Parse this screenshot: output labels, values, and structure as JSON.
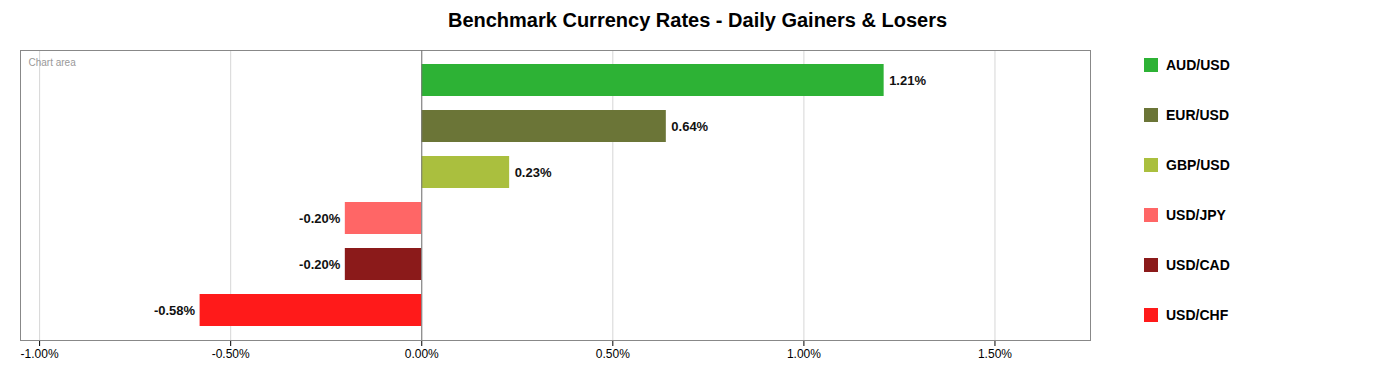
{
  "chart_data": {
    "type": "bar",
    "title": "Benchmark Currency Rates - Daily Gainers & Losers",
    "orientation": "horizontal",
    "categories": [
      "AUD/USD",
      "EUR/USD",
      "GBP/USD",
      "USD/JPY",
      "USD/CAD",
      "USD/CHF"
    ],
    "values": [
      1.21,
      0.64,
      0.23,
      -0.2,
      -0.2,
      -0.58
    ],
    "value_labels": [
      "1.21%",
      "0.64%",
      "0.23%",
      "-0.20%",
      "-0.20%",
      "-0.58%"
    ],
    "data_labels": true,
    "colors": [
      "#2DB235",
      "#6B7537",
      "#AABF3E",
      "#FF6666",
      "#8B1A1A",
      "#FF1A1A"
    ],
    "xlim": [
      -1.05,
      1.75
    ],
    "xticks": [
      {
        "value": -1.0,
        "label": "-1.00%"
      },
      {
        "value": -0.5,
        "label": "-0.50%"
      },
      {
        "value": 0.0,
        "label": "0.00%"
      },
      {
        "value": 0.5,
        "label": "0.50%"
      },
      {
        "value": 1.0,
        "label": "1.00%"
      },
      {
        "value": 1.5,
        "label": "1.50%"
      }
    ],
    "grid": true,
    "legend": "right",
    "tick_labels": "x",
    "annotations": [
      "Chart area"
    ]
  }
}
